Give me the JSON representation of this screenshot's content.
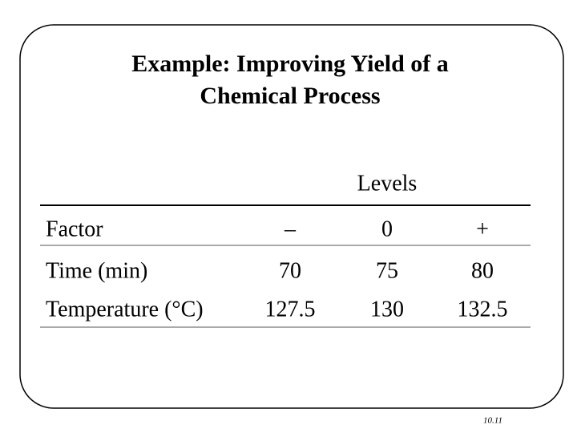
{
  "slide": {
    "title_lines": [
      "Example:  Improving Yield of a",
      "Chemical Process"
    ],
    "table": {
      "group_header": "Levels",
      "columns": [
        "Factor",
        "–",
        "0",
        "+"
      ],
      "rows": [
        [
          "Time (min)",
          "70",
          "75",
          "80"
        ],
        [
          "Temperature (°C)",
          "127.5",
          "130",
          "132.5"
        ]
      ]
    },
    "page_number": "10.11"
  }
}
